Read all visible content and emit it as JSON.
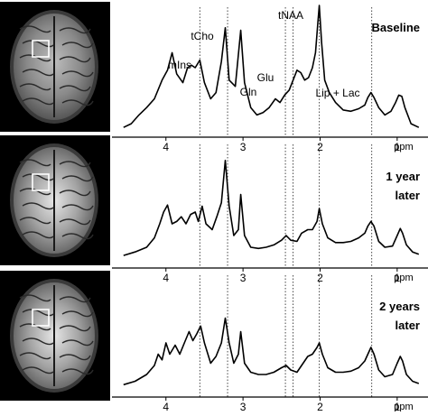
{
  "panels": [
    {
      "label_lines": [
        "Baseline"
      ],
      "mri_brightness": "low",
      "spectrum": [
        [
          4.55,
          0.02
        ],
        [
          4.45,
          0.05
        ],
        [
          4.35,
          0.12
        ],
        [
          4.25,
          0.18
        ],
        [
          4.15,
          0.25
        ],
        [
          4.05,
          0.4
        ],
        [
          3.98,
          0.48
        ],
        [
          3.92,
          0.62
        ],
        [
          3.86,
          0.45
        ],
        [
          3.78,
          0.38
        ],
        [
          3.72,
          0.5
        ],
        [
          3.67,
          0.52
        ],
        [
          3.62,
          0.5
        ],
        [
          3.56,
          0.56
        ],
        [
          3.5,
          0.38
        ],
        [
          3.42,
          0.25
        ],
        [
          3.35,
          0.3
        ],
        [
          3.28,
          0.55
        ],
        [
          3.23,
          0.82
        ],
        [
          3.18,
          0.4
        ],
        [
          3.1,
          0.35
        ],
        [
          3.03,
          0.8
        ],
        [
          2.98,
          0.38
        ],
        [
          2.9,
          0.18
        ],
        [
          2.82,
          0.12
        ],
        [
          2.74,
          0.14
        ],
        [
          2.66,
          0.18
        ],
        [
          2.58,
          0.25
        ],
        [
          2.52,
          0.22
        ],
        [
          2.46,
          0.28
        ],
        [
          2.4,
          0.32
        ],
        [
          2.35,
          0.4
        ],
        [
          2.3,
          0.48
        ],
        [
          2.25,
          0.46
        ],
        [
          2.2,
          0.4
        ],
        [
          2.15,
          0.42
        ],
        [
          2.1,
          0.5
        ],
        [
          2.06,
          0.62
        ],
        [
          2.03,
          0.85
        ],
        [
          2.01,
          1.0
        ],
        [
          1.98,
          0.7
        ],
        [
          1.94,
          0.4
        ],
        [
          1.88,
          0.3
        ],
        [
          1.8,
          0.22
        ],
        [
          1.7,
          0.16
        ],
        [
          1.6,
          0.15
        ],
        [
          1.5,
          0.17
        ],
        [
          1.42,
          0.2
        ],
        [
          1.38,
          0.26
        ],
        [
          1.34,
          0.3
        ],
        [
          1.3,
          0.26
        ],
        [
          1.24,
          0.18
        ],
        [
          1.16,
          0.12
        ],
        [
          1.08,
          0.15
        ],
        [
          1.02,
          0.22
        ],
        [
          0.98,
          0.28
        ],
        [
          0.94,
          0.27
        ],
        [
          0.9,
          0.18
        ],
        [
          0.82,
          0.05
        ],
        [
          0.72,
          0.02
        ]
      ],
      "annotations": [
        "tCho",
        "mIns",
        "Glu",
        "Gln",
        "tNAA",
        "Lip + Lac"
      ]
    },
    {
      "label_lines": [
        "1 year",
        "later"
      ],
      "mri_brightness": "mid",
      "spectrum": [
        [
          4.55,
          0.03
        ],
        [
          4.4,
          0.06
        ],
        [
          4.25,
          0.1
        ],
        [
          4.15,
          0.18
        ],
        [
          4.08,
          0.3
        ],
        [
          4.03,
          0.4
        ],
        [
          3.98,
          0.46
        ],
        [
          3.92,
          0.3
        ],
        [
          3.86,
          0.32
        ],
        [
          3.8,
          0.36
        ],
        [
          3.74,
          0.3
        ],
        [
          3.68,
          0.38
        ],
        [
          3.62,
          0.4
        ],
        [
          3.58,
          0.32
        ],
        [
          3.53,
          0.45
        ],
        [
          3.48,
          0.3
        ],
        [
          3.4,
          0.25
        ],
        [
          3.34,
          0.36
        ],
        [
          3.28,
          0.48
        ],
        [
          3.23,
          0.84
        ],
        [
          3.18,
          0.45
        ],
        [
          3.12,
          0.2
        ],
        [
          3.06,
          0.25
        ],
        [
          3.03,
          0.55
        ],
        [
          2.98,
          0.2
        ],
        [
          2.9,
          0.1
        ],
        [
          2.8,
          0.09
        ],
        [
          2.7,
          0.1
        ],
        [
          2.6,
          0.12
        ],
        [
          2.5,
          0.16
        ],
        [
          2.44,
          0.2
        ],
        [
          2.38,
          0.16
        ],
        [
          2.3,
          0.15
        ],
        [
          2.24,
          0.22
        ],
        [
          2.16,
          0.25
        ],
        [
          2.1,
          0.25
        ],
        [
          2.04,
          0.32
        ],
        [
          2.01,
          0.43
        ],
        [
          1.97,
          0.3
        ],
        [
          1.9,
          0.18
        ],
        [
          1.8,
          0.14
        ],
        [
          1.7,
          0.14
        ],
        [
          1.6,
          0.15
        ],
        [
          1.5,
          0.18
        ],
        [
          1.42,
          0.22
        ],
        [
          1.38,
          0.28
        ],
        [
          1.34,
          0.32
        ],
        [
          1.3,
          0.28
        ],
        [
          1.24,
          0.15
        ],
        [
          1.16,
          0.1
        ],
        [
          1.06,
          0.11
        ],
        [
          1.0,
          0.2
        ],
        [
          0.96,
          0.26
        ],
        [
          0.93,
          0.22
        ],
        [
          0.88,
          0.12
        ],
        [
          0.8,
          0.06
        ],
        [
          0.72,
          0.04
        ]
      ],
      "annotations": []
    },
    {
      "label_lines": [
        "2 years",
        "later"
      ],
      "mri_brightness": "mid",
      "spectrum": [
        [
          4.55,
          0.03
        ],
        [
          4.4,
          0.06
        ],
        [
          4.25,
          0.12
        ],
        [
          4.15,
          0.2
        ],
        [
          4.1,
          0.3
        ],
        [
          4.05,
          0.25
        ],
        [
          4.0,
          0.4
        ],
        [
          3.95,
          0.3
        ],
        [
          3.88,
          0.38
        ],
        [
          3.82,
          0.3
        ],
        [
          3.76,
          0.4
        ],
        [
          3.7,
          0.5
        ],
        [
          3.65,
          0.42
        ],
        [
          3.6,
          0.48
        ],
        [
          3.55,
          0.55
        ],
        [
          3.5,
          0.4
        ],
        [
          3.42,
          0.22
        ],
        [
          3.35,
          0.28
        ],
        [
          3.28,
          0.4
        ],
        [
          3.23,
          0.62
        ],
        [
          3.18,
          0.4
        ],
        [
          3.12,
          0.22
        ],
        [
          3.06,
          0.3
        ],
        [
          3.03,
          0.5
        ],
        [
          2.98,
          0.22
        ],
        [
          2.9,
          0.14
        ],
        [
          2.8,
          0.12
        ],
        [
          2.7,
          0.12
        ],
        [
          2.6,
          0.14
        ],
        [
          2.5,
          0.18
        ],
        [
          2.44,
          0.2
        ],
        [
          2.38,
          0.16
        ],
        [
          2.3,
          0.14
        ],
        [
          2.24,
          0.2
        ],
        [
          2.16,
          0.28
        ],
        [
          2.1,
          0.3
        ],
        [
          2.04,
          0.36
        ],
        [
          2.01,
          0.4
        ],
        [
          1.97,
          0.3
        ],
        [
          1.9,
          0.18
        ],
        [
          1.8,
          0.14
        ],
        [
          1.7,
          0.14
        ],
        [
          1.6,
          0.15
        ],
        [
          1.5,
          0.18
        ],
        [
          1.42,
          0.24
        ],
        [
          1.38,
          0.3
        ],
        [
          1.34,
          0.36
        ],
        [
          1.3,
          0.3
        ],
        [
          1.24,
          0.16
        ],
        [
          1.16,
          0.1
        ],
        [
          1.06,
          0.12
        ],
        [
          1.0,
          0.22
        ],
        [
          0.96,
          0.28
        ],
        [
          0.93,
          0.24
        ],
        [
          0.88,
          0.12
        ],
        [
          0.8,
          0.06
        ],
        [
          0.72,
          0.04
        ]
      ],
      "annotations": []
    }
  ],
  "axis": {
    "ticks": [
      "4",
      "3",
      "2",
      "1"
    ],
    "unit": "ppm",
    "xlim": [
      4.7,
      0.6
    ]
  },
  "reference_lines_ppm": [
    3.56,
    3.2,
    2.45,
    2.35,
    2.01,
    1.33
  ],
  "annotations": [
    {
      "text": "tCho",
      "ppm": 3.2
    },
    {
      "text": "mIns",
      "ppm": 3.56
    },
    {
      "text": "Glu",
      "ppm": 2.35
    },
    {
      "text": "Gln",
      "ppm": 2.45
    },
    {
      "text": "tNAA",
      "ppm": 2.01
    },
    {
      "text": "Lip + Lac",
      "ppm": 1.33
    }
  ],
  "colors": {
    "background": "#ffffff",
    "trace": "#000000",
    "voxel_box": "#ffffff",
    "mri_background": "#000000"
  }
}
